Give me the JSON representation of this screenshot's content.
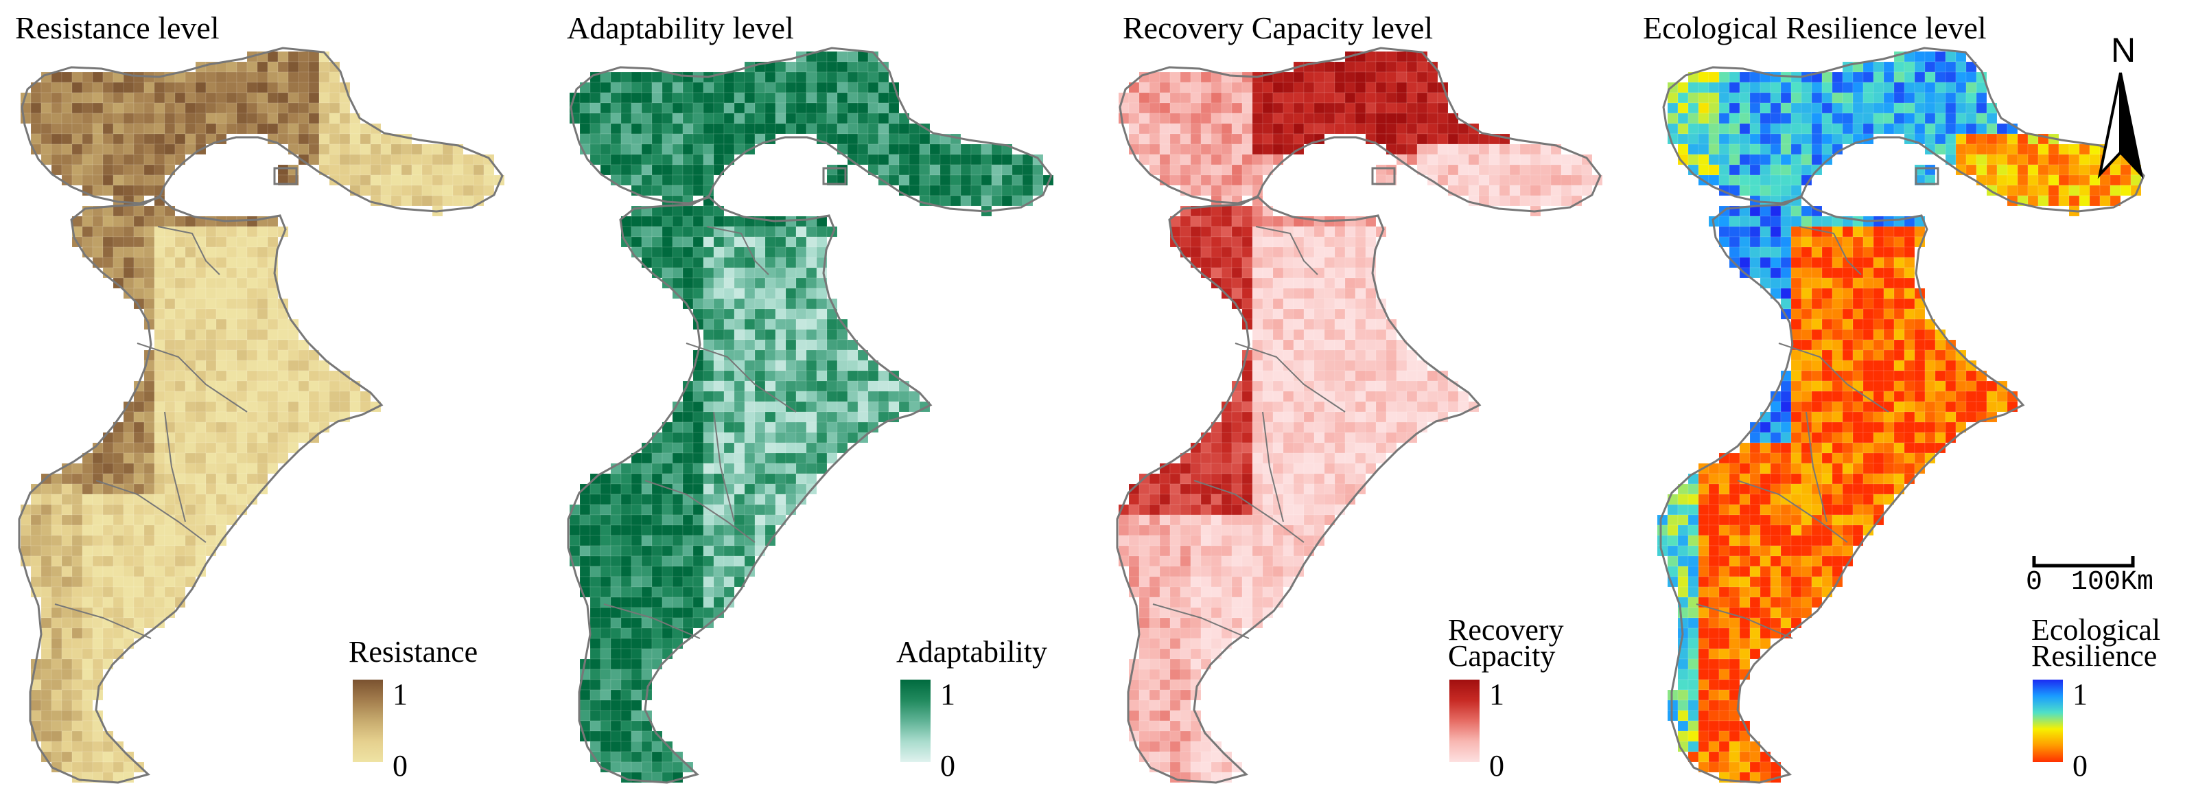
{
  "panels": [
    {
      "title": "Resistance level",
      "legend_title": "Resistance",
      "high_label": "1",
      "low_label": "0",
      "ramp": [
        "#efe3a4",
        "#e5d08e",
        "#c7ab6e",
        "#a37d4d",
        "#7a5230"
      ],
      "outline": "#777777"
    },
    {
      "title": "Adaptability level",
      "legend_title": "Adaptability",
      "high_label": "1",
      "low_label": "0",
      "ramp": [
        "#dff2ee",
        "#a9dccd",
        "#5fb295",
        "#218a5e",
        "#006a3e"
      ],
      "outline": "#777777"
    },
    {
      "title": "Recovery Capacity level",
      "legend_title_lines": [
        "Recovery",
        "Capacity"
      ],
      "high_label": "1",
      "low_label": "0",
      "ramp": [
        "#fde0e0",
        "#f8b7b2",
        "#e66c64",
        "#c72a24",
        "#a10f0f"
      ],
      "outline": "#777777"
    },
    {
      "title": "Ecological Resilience level",
      "legend_title_lines": [
        "Ecological",
        "Resilience"
      ],
      "high_label": "1",
      "low_label": "0",
      "ramp": [
        "#ff3000",
        "#ff9b00",
        "#f7f000",
        "#4fe0c8",
        "#1a9cff",
        "#1b2bf2"
      ],
      "outline": "#777777"
    }
  ],
  "north_arrow": {
    "label": "N"
  },
  "scale_bar": {
    "start_label": "0",
    "end_label": "100Km"
  },
  "map_grid": {
    "cell_data_units": "normalized 0-1 index"
  }
}
